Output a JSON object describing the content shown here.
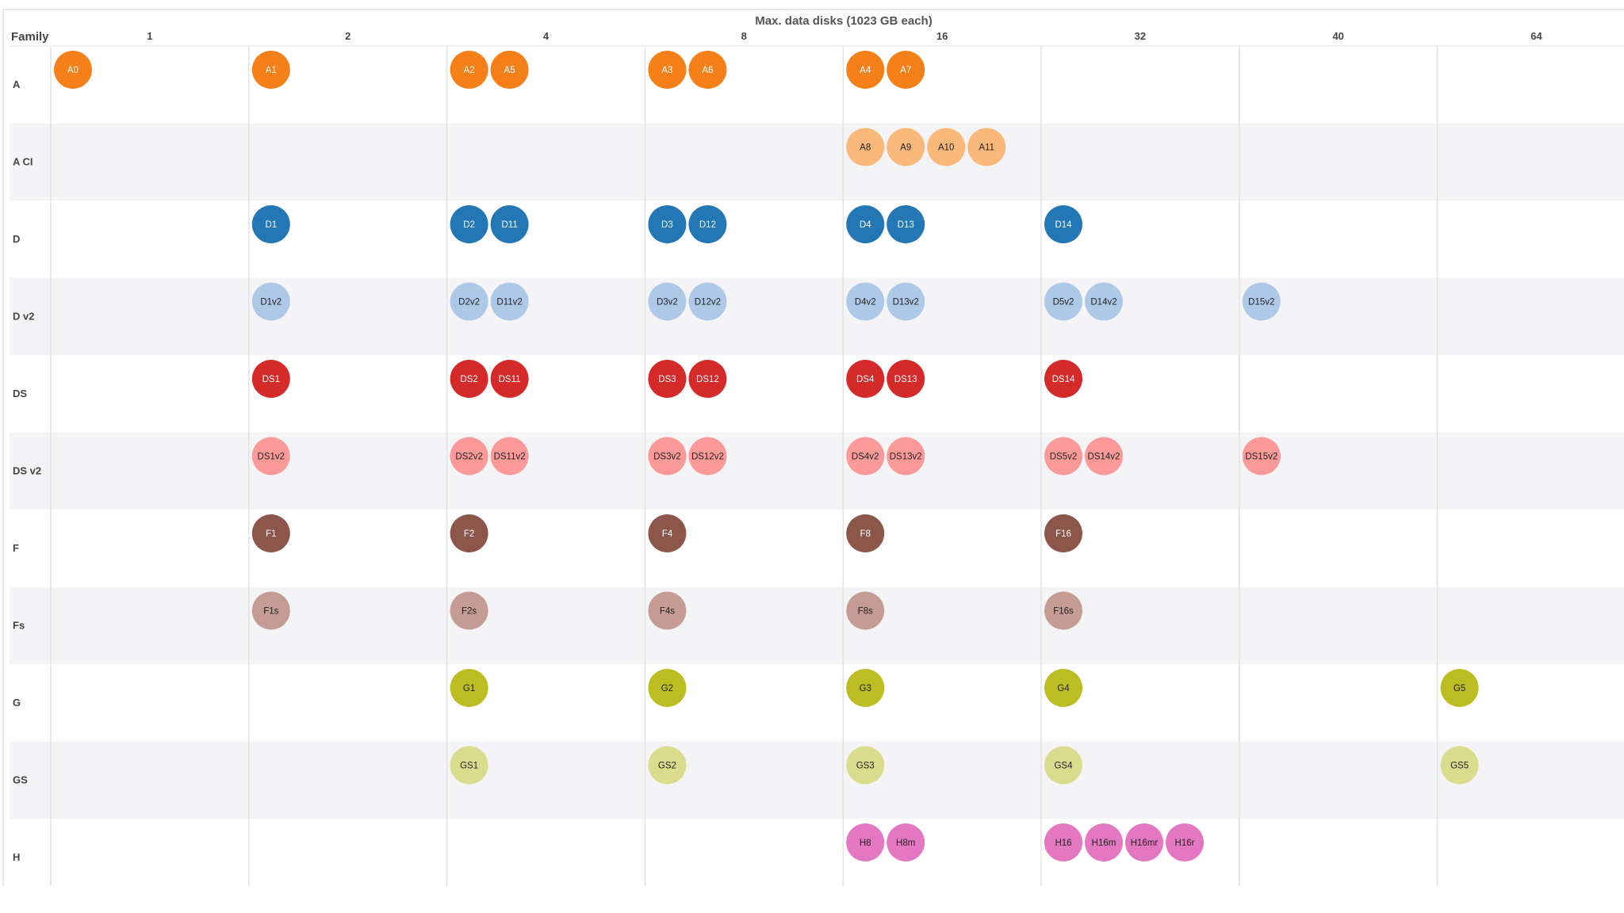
{
  "chart_data": {
    "type": "scatter",
    "title": "Max. data disks (1023 GB each)",
    "row_header": "Family",
    "columns": [
      "1",
      "2",
      "4",
      "8",
      "16",
      "32",
      "40",
      "64"
    ],
    "rows": [
      {
        "family": "A",
        "color": "#f5801a",
        "text_color": "#ffffff",
        "cells": [
          [
            "A0"
          ],
          [
            "A1"
          ],
          [
            "A2",
            "A5"
          ],
          [
            "A3",
            "A6"
          ],
          [
            "A4",
            "A7"
          ],
          [],
          [],
          []
        ]
      },
      {
        "family": "A CI",
        "color": "#fbb87b",
        "text_color": "#222222",
        "cells": [
          [],
          [],
          [],
          [],
          [
            "A8",
            "A9",
            "A10",
            "A11"
          ],
          [],
          [],
          []
        ]
      },
      {
        "family": "D",
        "color": "#2277b4",
        "text_color": "#ffffff",
        "cells": [
          [],
          [
            "D1"
          ],
          [
            "D2",
            "D11"
          ],
          [
            "D3",
            "D12"
          ],
          [
            "D4",
            "D13"
          ],
          [
            "D14"
          ],
          [],
          []
        ]
      },
      {
        "family": "D v2",
        "color": "#aec8e8",
        "text_color": "#222222",
        "cells": [
          [],
          [
            "D1v2"
          ],
          [
            "D2v2",
            "D11v2"
          ],
          [
            "D3v2",
            "D12v2"
          ],
          [
            "D4v2",
            "D13v2"
          ],
          [
            "D5v2",
            "D14v2"
          ],
          [
            "D15v2"
          ],
          []
        ]
      },
      {
        "family": "DS",
        "color": "#d42a2a",
        "text_color": "#ffffff",
        "cells": [
          [],
          [
            "DS1"
          ],
          [
            "DS2",
            "DS11"
          ],
          [
            "DS3",
            "DS12"
          ],
          [
            "DS4",
            "DS13"
          ],
          [
            "DS14"
          ],
          [],
          []
        ]
      },
      {
        "family": "DS v2",
        "color": "#fb9a98",
        "text_color": "#222222",
        "cells": [
          [],
          [
            "DS1v2"
          ],
          [
            "DS2v2",
            "DS11v2"
          ],
          [
            "DS3v2",
            "DS12v2"
          ],
          [
            "DS4v2",
            "DS13v2"
          ],
          [
            "DS5v2",
            "DS14v2"
          ],
          [
            "DS15v2"
          ],
          []
        ]
      },
      {
        "family": "F",
        "color": "#8c564b",
        "text_color": "#ffffff",
        "cells": [
          [],
          [
            "F1"
          ],
          [
            "F2"
          ],
          [
            "F4"
          ],
          [
            "F8"
          ],
          [
            "F16"
          ],
          [],
          []
        ]
      },
      {
        "family": "Fs",
        "color": "#c49c94",
        "text_color": "#222222",
        "cells": [
          [],
          [
            "F1s"
          ],
          [
            "F2s"
          ],
          [
            "F4s"
          ],
          [
            "F8s"
          ],
          [
            "F16s"
          ],
          [],
          []
        ]
      },
      {
        "family": "G",
        "color": "#bcbd22",
        "text_color": "#222222",
        "cells": [
          [],
          [],
          [
            "G1"
          ],
          [
            "G2"
          ],
          [
            "G3"
          ],
          [
            "G4"
          ],
          [],
          [
            "G5"
          ]
        ]
      },
      {
        "family": "GS",
        "color": "#dbdb8d",
        "text_color": "#222222",
        "cells": [
          [],
          [],
          [
            "GS1"
          ],
          [
            "GS2"
          ],
          [
            "GS3"
          ],
          [
            "GS4"
          ],
          [],
          [
            "GS5"
          ]
        ]
      },
      {
        "family": "H",
        "color": "#e377c2",
        "text_color": "#222222",
        "cells": [
          [],
          [],
          [],
          [],
          [
            "H8",
            "H8m"
          ],
          [
            "H16",
            "H16m",
            "H16mr",
            "H16r"
          ],
          [],
          []
        ]
      }
    ],
    "grid": true,
    "stripe_color": "#f4f4f6",
    "grid_color": "#e2e2e2"
  }
}
